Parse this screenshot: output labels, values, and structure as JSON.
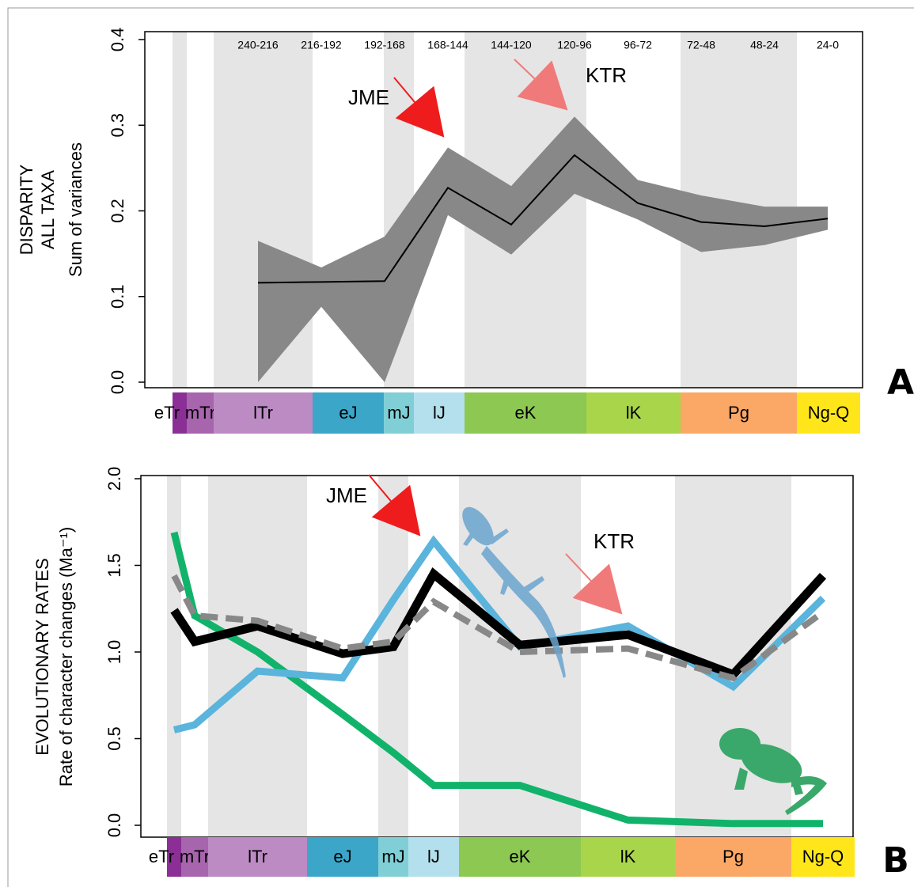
{
  "chart_data": [
    {
      "type": "band-line",
      "panel_label": "A",
      "ylabel": [
        "DISPARITY",
        "ALL TAXA",
        "Sum of variances"
      ],
      "categories": [
        "240-216",
        "216-192",
        "192-168",
        "168-144",
        "144-120",
        "120-96",
        "96-72",
        "72-48",
        "48-24",
        "24-0"
      ],
      "series": [
        {
          "color": "#000000",
          "band_color": "#888888",
          "values": [
            0.116,
            0.117,
            0.118,
            0.227,
            0.184,
            0.265,
            0.209,
            0.187,
            0.182,
            0.191
          ],
          "upper": [
            0.165,
            0.134,
            0.17,
            0.274,
            0.229,
            0.31,
            0.236,
            0.218,
            0.205,
            0.205
          ],
          "lower": [
            0.0,
            0.088,
            0.0,
            0.195,
            0.149,
            0.22,
            0.19,
            0.152,
            0.16,
            0.178
          ]
        }
      ],
      "ylim": [
        0,
        0.4
      ],
      "yticks": [
        {
          "value": 0,
          "label": "0.0"
        },
        0.1,
        0.2,
        0.3,
        0.4
      ],
      "periods": [
        {
          "label": "eTr",
          "color": "#8b2f97"
        },
        {
          "label": "mTr",
          "color": "#a765ad"
        },
        {
          "label": "lTr",
          "color": "#bc8bc4"
        },
        {
          "label": "eJ",
          "color": "#3ba6c8"
        },
        {
          "label": "mJ",
          "color": "#80cfd6"
        },
        {
          "label": "lJ",
          "color": "#b3e0ec"
        },
        {
          "label": "eK",
          "color": "#8dc853"
        },
        {
          "label": "lK",
          "color": "#a9d54b"
        },
        {
          "label": "Pg",
          "color": "#fba766"
        },
        {
          "label": "Ng-Q",
          "color": "#ffe61a"
        }
      ],
      "annotations": [
        {
          "text": "JME",
          "color": "#ee1c1c"
        },
        {
          "text": "KTR",
          "color": "#f07a7a"
        }
      ]
    },
    {
      "type": "line",
      "panel_label": "B",
      "ylabel": [
        "EVOLUTIONARY RATES",
        "Rate of character changes (Ma⁻¹)"
      ],
      "categories": [
        "eTr",
        "mTr",
        "lTr",
        "eJ",
        "mJ",
        "lJ",
        "eK",
        "lK",
        "Pg",
        "Ng-Q"
      ],
      "series": [
        {
          "color": "#11b36b",
          "width": 9,
          "values": [
            1.69,
            1.21,
            1.0,
            0.64,
            0.42,
            0.23,
            0.23,
            0.03,
            0.01,
            0.01
          ]
        },
        {
          "color": "#5ab4dc",
          "width": 9,
          "values": [
            0.55,
            0.58,
            0.89,
            0.85,
            1.3,
            1.64,
            1.03,
            1.15,
            0.8,
            1.31
          ]
        },
        {
          "color": "#000000",
          "width": 11,
          "values": [
            1.24,
            1.06,
            1.15,
            0.99,
            1.03,
            1.45,
            1.04,
            1.1,
            0.87,
            1.44
          ]
        },
        {
          "color": "#888888",
          "width": 8,
          "dashed": true,
          "values": [
            1.44,
            1.21,
            1.18,
            1.02,
            1.06,
            1.29,
            1.0,
            1.02,
            0.85,
            1.23
          ]
        }
      ],
      "ylim": [
        0,
        2
      ],
      "yticks": [
        {
          "value": 0,
          "label": "0.0"
        },
        0.5,
        {
          "value": 1,
          "label": "1.0"
        },
        1.5,
        {
          "value": 2,
          "label": "2.0"
        }
      ],
      "periods": [
        {
          "label": "eTr",
          "color": "#8b2f97"
        },
        {
          "label": "mTr",
          "color": "#a765ad"
        },
        {
          "label": "lTr",
          "color": "#bc8bc4"
        },
        {
          "label": "eJ",
          "color": "#3ba6c8"
        },
        {
          "label": "mJ",
          "color": "#80cfd6"
        },
        {
          "label": "lJ",
          "color": "#b3e0ec"
        },
        {
          "label": "eK",
          "color": "#8dc853"
        },
        {
          "label": "lK",
          "color": "#a9d54b"
        },
        {
          "label": "Pg",
          "color": "#fba766"
        },
        {
          "label": "Ng-Q",
          "color": "#ffe61a"
        }
      ],
      "annotations": [
        {
          "text": "JME",
          "color": "#ee1c1c"
        },
        {
          "text": "KTR",
          "color": "#f07a7a"
        }
      ]
    }
  ]
}
